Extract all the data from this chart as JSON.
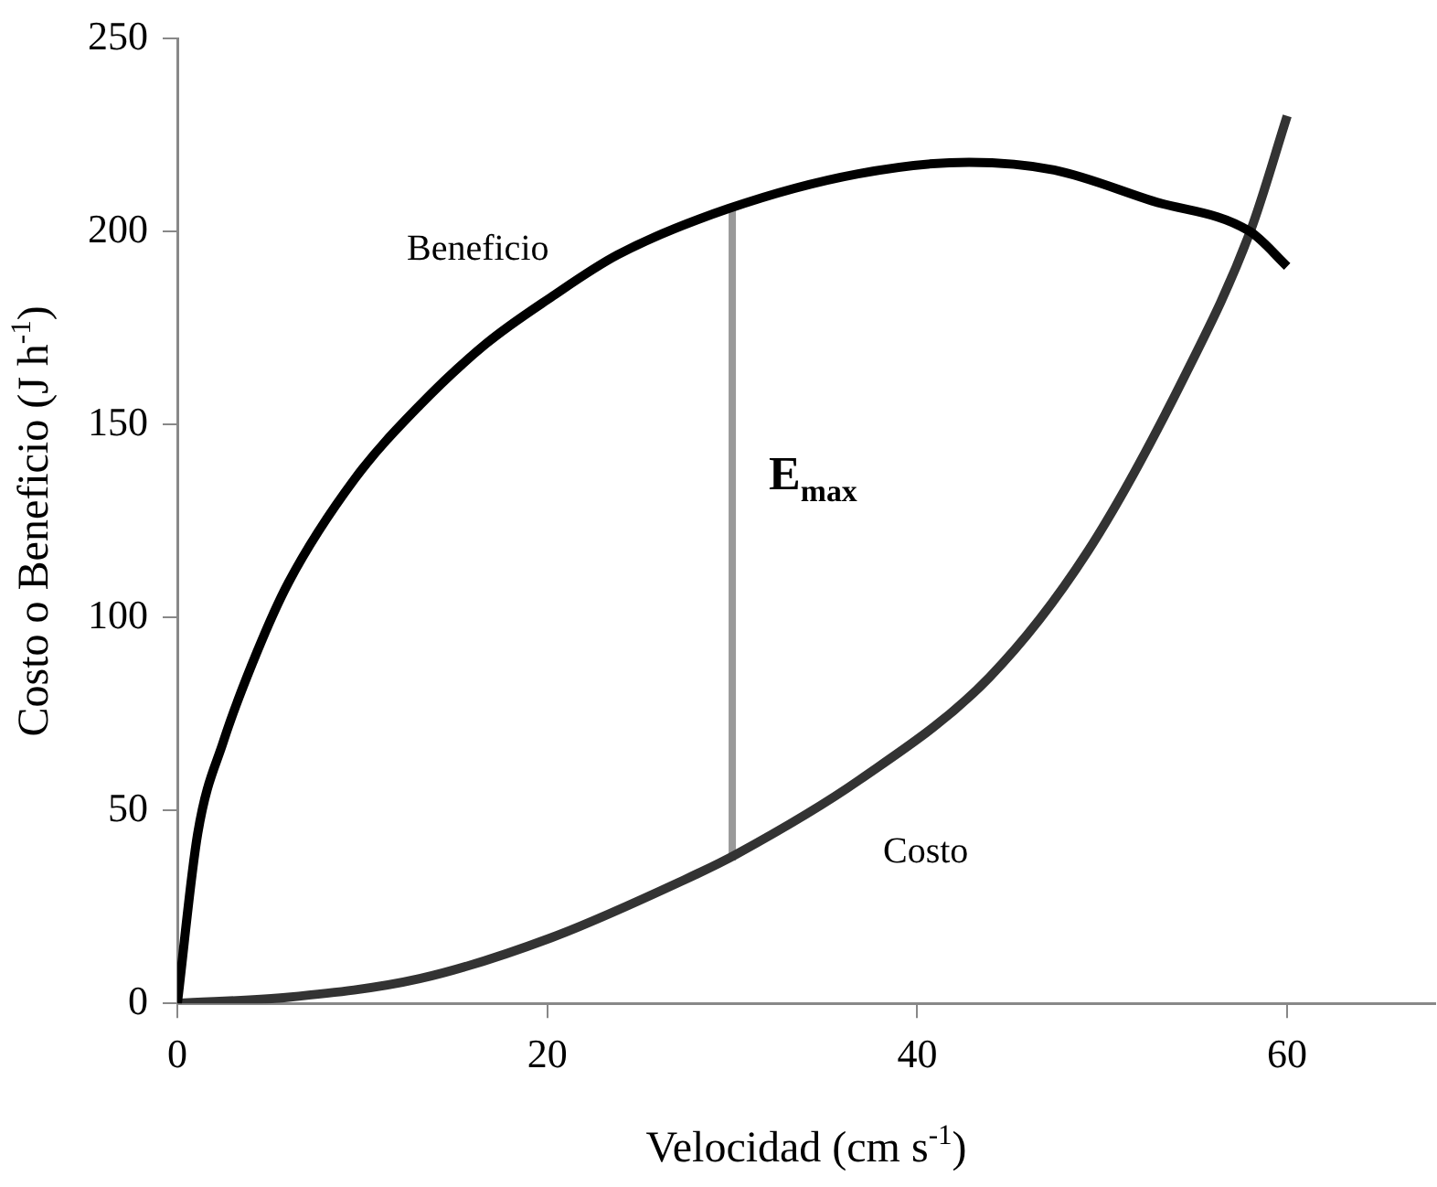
{
  "chart_data": {
    "type": "line",
    "xlabel": "Velocidad (cm s$^{-1}$)",
    "ylabel": "Costo o Beneficio (J h$^{-1}$)",
    "xlim": [
      0,
      68
    ],
    "xticks": [
      0,
      20,
      40,
      60
    ],
    "ylim": [
      0,
      250
    ],
    "yticks": [
      0,
      50,
      100,
      150,
      200,
      250
    ],
    "grid": false,
    "legend": false,
    "marker": "none",
    "line_style": "solid",
    "series": [
      {
        "name": "Beneficio",
        "color": "#000000",
        "x": [
          0,
          1.1,
          2.5,
          4.3,
          6,
          9.6,
          13.1,
          16.7,
          20.2,
          23.8,
          29.8,
          36.8,
          42.8,
          47.4,
          52.7,
          58,
          60
        ],
        "values": [
          0,
          44,
          68,
          91,
          109,
          136,
          155,
          171,
          183,
          194,
          206,
          215,
          218,
          216,
          208,
          200,
          191
        ]
      },
      {
        "name": "Costo",
        "color": "#333333",
        "x": [
          0,
          6,
          13.1,
          20.2,
          27.4,
          30.2,
          36.9,
          43.9,
          49.2,
          54.5,
          58,
          60
        ],
        "values": [
          0,
          1.6,
          6.4,
          17,
          32,
          38.6,
          58,
          84.5,
          117,
          163,
          200,
          230
        ]
      },
      {
        "color": "#999999",
        "x": [
          30,
          30
        ],
        "values": [
          37,
          206
        ]
      }
    ],
    "annotations": [
      "E$_{max}$"
    ]
  }
}
